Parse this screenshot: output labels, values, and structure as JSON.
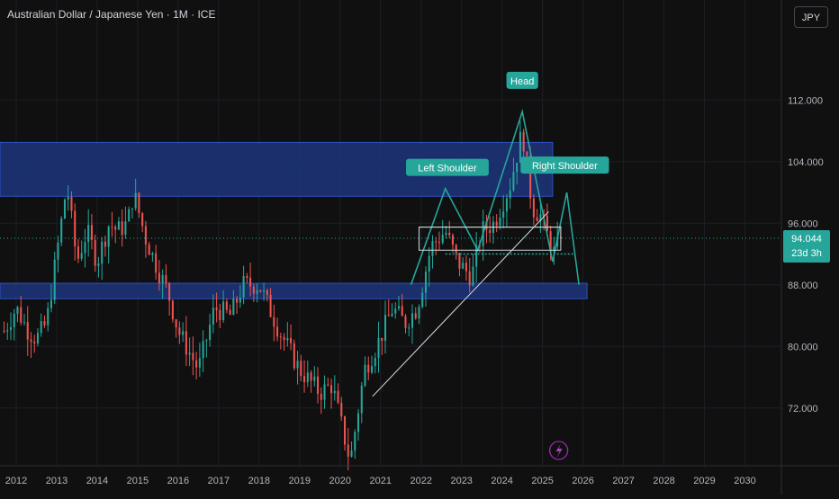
{
  "header": {
    "title": "Australian Dollar / Japanese Yen · 1M · ICE",
    "currency_button": "JPY"
  },
  "price_badge": {
    "price": "94.044",
    "countdown": "23d 3h"
  },
  "colors": {
    "up": "#26a69a",
    "down": "#ef5350",
    "zone": "#1e3a8a",
    "pattern": "#26a69a",
    "background": "#101010"
  },
  "chart_data": {
    "type": "candlestick",
    "title": "Australian Dollar / Japanese Yen · 1M · ICE",
    "y_ticks": [
      "112.000",
      "104.000",
      "96.000",
      "88.000",
      "80.000",
      "72.000"
    ],
    "x_ticks": [
      "2012",
      "2013",
      "2014",
      "2015",
      "2016",
      "2017",
      "2018",
      "2019",
      "2020",
      "2021",
      "2022",
      "2023",
      "2024",
      "2025",
      "2026",
      "2027",
      "2028",
      "2029",
      "2030"
    ],
    "ylim": [
      64.5,
      125
    ],
    "xlim": [
      2011.6,
      2030.9
    ],
    "last_price": 94.044,
    "closes": [
      {
        "t": 2011.7,
        "c": 82
      },
      {
        "t": 2012.0,
        "c": 85
      },
      {
        "t": 2012.3,
        "c": 82
      },
      {
        "t": 2012.5,
        "c": 81
      },
      {
        "t": 2012.75,
        "c": 83
      },
      {
        "t": 2013.0,
        "c": 92
      },
      {
        "t": 2013.25,
        "c": 101
      },
      {
        "t": 2013.5,
        "c": 91
      },
      {
        "t": 2013.75,
        "c": 95
      },
      {
        "t": 2014.0,
        "c": 91
      },
      {
        "t": 2014.3,
        "c": 96
      },
      {
        "t": 2014.5,
        "c": 95
      },
      {
        "t": 2014.75,
        "c": 96
      },
      {
        "t": 2014.9,
        "c": 100
      },
      {
        "t": 2015.2,
        "c": 94
      },
      {
        "t": 2015.5,
        "c": 90
      },
      {
        "t": 2015.75,
        "c": 87
      },
      {
        "t": 2016.0,
        "c": 82
      },
      {
        "t": 2016.5,
        "c": 77
      },
      {
        "t": 2016.9,
        "c": 85
      },
      {
        "t": 2017.3,
        "c": 84
      },
      {
        "t": 2017.6,
        "c": 88
      },
      {
        "t": 2018.0,
        "c": 88
      },
      {
        "t": 2018.5,
        "c": 82
      },
      {
        "t": 2019.0,
        "c": 77
      },
      {
        "t": 2019.5,
        "c": 74
      },
      {
        "t": 2019.8,
        "c": 75
      },
      {
        "t": 2020.25,
        "c": 65
      },
      {
        "t": 2020.6,
        "c": 77
      },
      {
        "t": 2020.9,
        "c": 80
      },
      {
        "t": 2021.3,
        "c": 85
      },
      {
        "t": 2021.6,
        "c": 83
      },
      {
        "t": 2021.9,
        "c": 85
      },
      {
        "t": 2022.25,
        "c": 93
      },
      {
        "t": 2022.6,
        "c": 95
      },
      {
        "t": 2022.9,
        "c": 91
      },
      {
        "t": 2023.25,
        "c": 89
      },
      {
        "t": 2023.5,
        "c": 95
      },
      {
        "t": 2023.8,
        "c": 96
      },
      {
        "t": 2024.2,
        "c": 101
      },
      {
        "t": 2024.5,
        "c": 108
      },
      {
        "t": 2024.75,
        "c": 98
      },
      {
        "t": 2024.95,
        "c": 97
      },
      {
        "t": 2025.15,
        "c": 94
      },
      {
        "t": 2025.3,
        "c": 92
      },
      {
        "t": 2025.45,
        "c": 94.04
      }
    ],
    "zones": [
      {
        "y_top": 106.5,
        "y_bottom": 99.5
      },
      {
        "y_top": 88.2,
        "y_bottom": 86.2
      }
    ],
    "annotations": [
      "Left Shoulder",
      "Head",
      "Right Shoulder"
    ]
  }
}
